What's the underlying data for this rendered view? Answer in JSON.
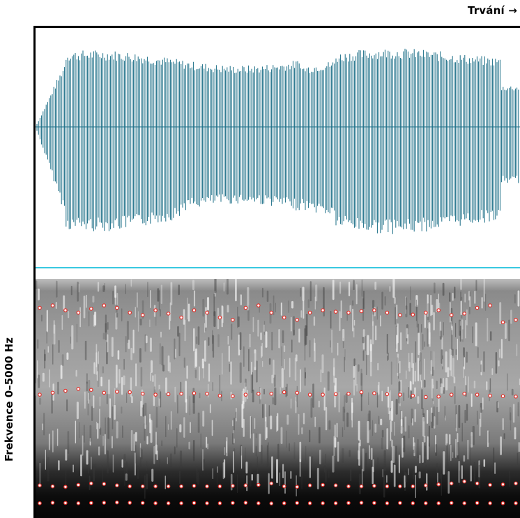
{
  "title": "Trvání →",
  "ylabel": "Frekvence 0–5000 Hz",
  "colors": {
    "waveform": "#1a6d86",
    "separator": "#38c8e0",
    "formant_marker": "#e2302a",
    "spectrogram_dark": "#0a0a0a",
    "spectrogram_light": "#f2f2f2"
  },
  "chart_data": {
    "type": "spectrogram",
    "title": "Trvání →",
    "xlabel": "",
    "ylabel": "Frekvence 0–5000 Hz",
    "ylim": [
      0,
      5000
    ],
    "series": [
      {
        "values": [
          350,
          360,
          355,
          350,
          355,
          360,
          365,
          360,
          355,
          350,
          350,
          350,
          355,
          350,
          350,
          355,
          360,
          350,
          345,
          350,
          355,
          350,
          350,
          350,
          355,
          360,
          355,
          350,
          355,
          350,
          350,
          350,
          355,
          350,
          355,
          350,
          350,
          350
        ]
      },
      {
        "values": [
          720,
          700,
          690,
          730,
          760,
          750,
          720,
          700,
          700,
          700,
          700,
          700,
          710,
          700,
          700,
          710,
          720,
          730,
          760,
          700,
          690,
          720,
          730,
          720,
          700,
          700,
          710,
          700,
          700,
          700,
          720,
          740,
          760,
          800,
          760,
          730,
          740,
          760
        ]
      },
      {
        "values": [
          2600,
          2640,
          2680,
          2720,
          2700,
          2640,
          2660,
          2650,
          2620,
          2600,
          2610,
          2620,
          2630,
          2620,
          2580,
          2570,
          2600,
          2620,
          2620,
          2650,
          2640,
          2600,
          2600,
          2610,
          2620,
          2650,
          2630,
          2610,
          2600,
          2580,
          2550,
          2560,
          2600,
          2620,
          2600,
          2580,
          2570,
          2560
        ]
      },
      {
        "values": [
          4400,
          4450,
          4350,
          4300,
          4380,
          4450,
          4400,
          4300,
          4250,
          4350,
          4280,
          4200,
          4350,
          4300,
          4200,
          4150,
          4400,
          4450,
          4300,
          4200,
          4150,
          4300,
          4350,
          4320,
          4300,
          4330,
          4350,
          4300,
          4250,
          4260,
          4300,
          4350,
          4250,
          4280,
          4400,
          4450,
          4100,
          4150
        ]
      }
    ]
  }
}
